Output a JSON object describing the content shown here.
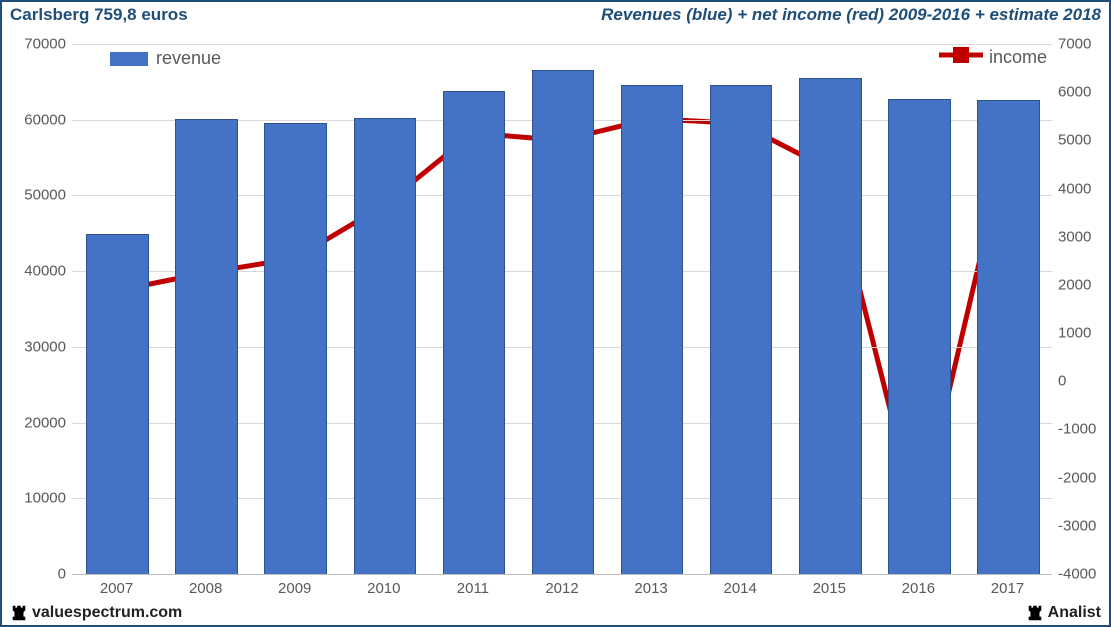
{
  "header": {
    "left": "Carlsberg 759,8 euros",
    "right": "Revenues (blue) + net income (red) 2009-2016 + estimate 2018"
  },
  "footer": {
    "left": "valuespectrum.com",
    "right": "Analist"
  },
  "chart": {
    "type": "bar+line",
    "background_color": "#ffffff",
    "grid_color": "#d9d9d9",
    "axis_color": "#bfbfbf",
    "label_color": "#595959",
    "label_fontsize": 15,
    "categories": [
      "2007",
      "2008",
      "2009",
      "2010",
      "2011",
      "2012",
      "2013",
      "2014",
      "2015",
      "2016",
      "2017"
    ],
    "left_axis": {
      "min": 0,
      "max": 70000,
      "tick_step": 10000
    },
    "right_axis": {
      "min": -4000,
      "max": 7000,
      "tick_step": 1000
    },
    "bars": {
      "label": "revenue",
      "color": "#4472c4",
      "border_color": "#2f528f",
      "width_ratio": 0.68,
      "values": [
        44800,
        60000,
        59400,
        60100,
        63600,
        66500,
        64400,
        64500,
        65400,
        62600,
        62500
      ]
    },
    "line": {
      "label": "income",
      "color": "#c00000",
      "width": 5,
      "marker_size": 16,
      "values": [
        1880,
        2250,
        2550,
        3650,
        5150,
        5000,
        5450,
        5350,
        4400,
        -2900,
        4950
      ]
    }
  },
  "colors": {
    "frame": "#1f4e79",
    "title": "#1f4e79"
  }
}
